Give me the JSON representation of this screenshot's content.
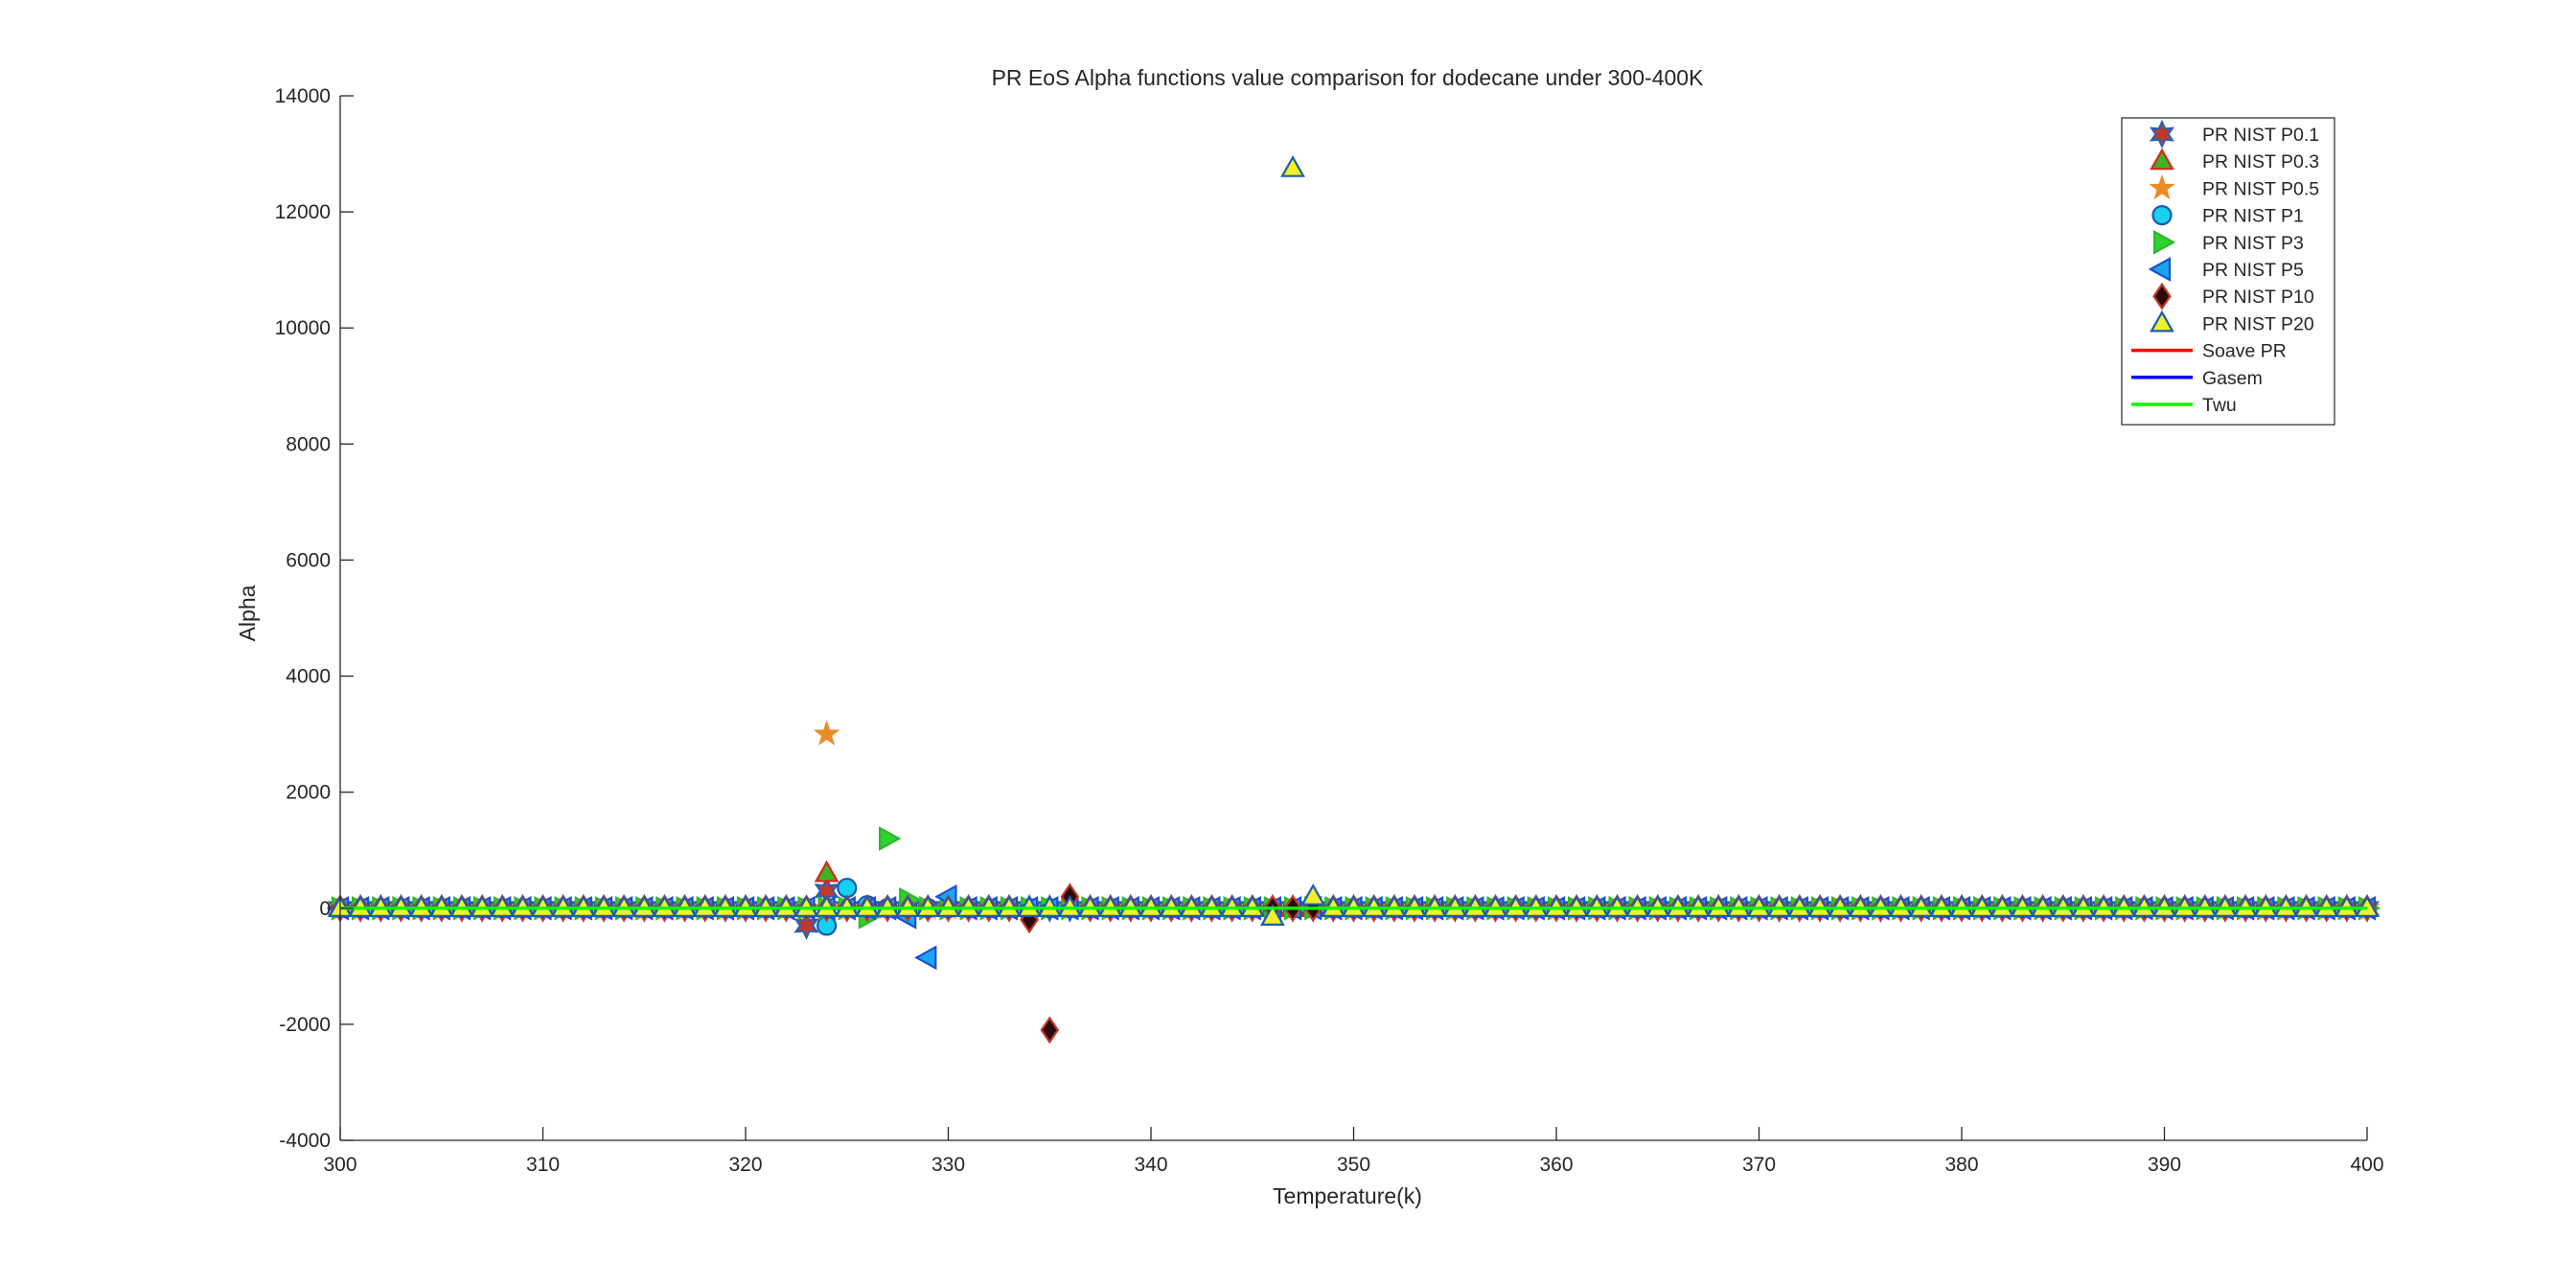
{
  "chart_data": {
    "type": "scatter",
    "title": "PR EoS Alpha functions value comparison for dodecane under 300-400K",
    "xlabel": "Temperature(k)",
    "ylabel": "Alpha",
    "xlim": [
      300,
      400
    ],
    "ylim": [
      -4000,
      14000
    ],
    "xticks": [
      300,
      310,
      320,
      330,
      340,
      350,
      360,
      370,
      380,
      390,
      400
    ],
    "yticks": [
      -4000,
      -2000,
      0,
      2000,
      4000,
      6000,
      8000,
      10000,
      12000,
      14000
    ],
    "grid": false,
    "legend_position": "top-right",
    "x_range": [
      300,
      400
    ],
    "x_step": 1,
    "baseline_value": 0,
    "series": [
      {
        "name": "PR NIST P0.1",
        "marker": "hexagram",
        "color": "#2b5fb4",
        "fill": "#c0392b",
        "outliers": [
          [
            323,
            -300
          ],
          [
            324,
            300
          ]
        ]
      },
      {
        "name": "PR NIST P0.3",
        "marker": "triangle-up",
        "color": "#d42a1f",
        "fill": "#3cb521",
        "outliers": [
          [
            324,
            600
          ]
        ]
      },
      {
        "name": "PR NIST P0.5",
        "marker": "pentagram",
        "color": "#ec8a26",
        "fill": "#ec8a26",
        "outliers": [
          [
            324,
            3000
          ]
        ]
      },
      {
        "name": "PR NIST P1",
        "marker": "circle",
        "color": "#1a59b6",
        "fill": "#1ad0f0",
        "outliers": [
          [
            324,
            -300
          ],
          [
            325,
            350
          ],
          [
            326,
            50
          ]
        ]
      },
      {
        "name": "PR NIST P3",
        "marker": "triangle-right",
        "color": "#2db92d",
        "fill": "#2fd12f",
        "outliers": [
          [
            326,
            -150
          ],
          [
            327,
            1200
          ],
          [
            328,
            150
          ]
        ]
      },
      {
        "name": "PR NIST P5",
        "marker": "triangle-left",
        "color": "#1b4fd1",
        "fill": "#1aa6ee",
        "outliers": [
          [
            328,
            -150
          ],
          [
            329,
            -850
          ],
          [
            330,
            200
          ]
        ]
      },
      {
        "name": "PR NIST P10",
        "marker": "diamond",
        "color": "#c0392b",
        "fill": "#2a0a0a",
        "outliers": [
          [
            334,
            -200
          ],
          [
            335,
            -2100
          ],
          [
            336,
            200
          ]
        ]
      },
      {
        "name": "PR NIST P20",
        "marker": "triangle-up",
        "color": "#1a5fb0",
        "fill": "#f4f12a",
        "outliers": [
          [
            346,
            -150
          ],
          [
            347,
            12750
          ],
          [
            348,
            200
          ]
        ]
      },
      {
        "name": "Soave PR",
        "type": "line",
        "color": "#ff0000",
        "value": 0
      },
      {
        "name": "Gasem",
        "type": "line",
        "color": "#0000ff",
        "value": 0
      },
      {
        "name": "Twu",
        "type": "line",
        "color": "#00ff00",
        "value": 0
      }
    ]
  }
}
